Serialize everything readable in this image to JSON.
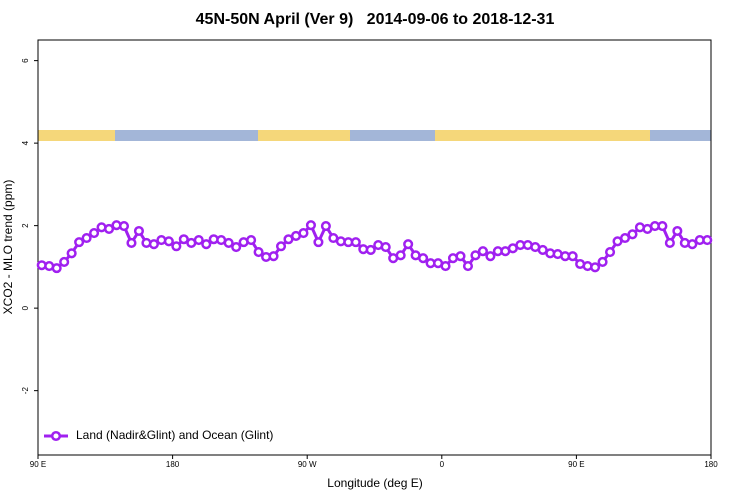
{
  "chart_data": {
    "type": "line",
    "title": "45N-50N April (Ver 9)   2014-09-06 to 2018-12-31",
    "x_label": "Longitude (deg E)",
    "y_label": "XCO2 - MLO trend (ppm)",
    "x": [
      92.5,
      97.5,
      102.5,
      107.5,
      112.5,
      117.5,
      122.5,
      127.5,
      132.5,
      137.5,
      142.5,
      147.5,
      152.5,
      157.5,
      162.5,
      167.5,
      172.5,
      177.5,
      182.5,
      187.5,
      192.5,
      197.5,
      202.5,
      207.5,
      212.5,
      217.5,
      222.5,
      227.5,
      232.5,
      237.5,
      242.5,
      247.5,
      252.5,
      257.5,
      262.5,
      267.5,
      272.5,
      277.5,
      282.5,
      287.5,
      292.5,
      297.5,
      302.5,
      307.5,
      312.5,
      317.5,
      322.5,
      327.5,
      332.5,
      337.5,
      342.5,
      347.5,
      352.5,
      357.5,
      362.5,
      367.5,
      372.5,
      377.5,
      382.5,
      387.5,
      392.5,
      397.5,
      402.5,
      407.5,
      412.5,
      417.5,
      422.5,
      427.5,
      432.5,
      437.5,
      442.5,
      447.5,
      452.5,
      457.5,
      462.5,
      467.5,
      472.5,
      477.5,
      482.5,
      487.5,
      492.5,
      497.5,
      502.5,
      507.5,
      512.5,
      517.5,
      522.5,
      527.5,
      532.5,
      537.5
    ],
    "series": [
      {
        "name": "Land (Nadir&Glint) and Ocean (Glint)",
        "color": "#a020f0",
        "values": [
          1.04,
          1.02,
          0.97,
          1.12,
          1.33,
          1.6,
          1.7,
          1.82,
          1.96,
          1.92,
          2.01,
          1.99,
          1.58,
          1.87,
          1.58,
          1.55,
          1.65,
          1.62,
          1.5,
          1.67,
          1.58,
          1.65,
          1.55,
          1.67,
          1.65,
          1.58,
          1.48,
          1.6,
          1.65,
          1.36,
          1.24,
          1.26,
          1.5,
          1.67,
          1.75,
          1.82,
          2.01,
          1.6,
          1.99,
          1.7,
          1.62,
          1.6,
          1.6,
          1.43,
          1.41,
          1.53,
          1.48,
          1.21,
          1.28,
          1.55,
          1.28,
          1.21,
          1.09,
          1.09,
          1.02,
          1.21,
          1.26,
          1.02,
          1.28,
          1.38,
          1.26,
          1.38,
          1.38,
          1.45,
          1.53,
          1.53,
          1.48,
          1.41,
          1.33,
          1.31,
          1.26,
          1.26,
          1.07,
          1.02,
          0.99,
          1.12,
          1.36,
          1.62,
          1.7,
          1.79,
          1.96,
          1.92,
          1.99,
          1.99,
          1.58,
          1.87,
          1.58,
          1.55,
          1.65,
          1.65
        ]
      }
    ],
    "xlim": [
      90,
      540
    ],
    "xticks": [
      {
        "value": 90,
        "label": "90 E"
      },
      180,
      {
        "value": 270,
        "label": "90 W"
      },
      {
        "value": 360,
        "label": "0"
      },
      {
        "value": 450,
        "label": "90 E"
      },
      {
        "value": 540,
        "label": "180"
      }
    ],
    "ylim": [
      -3.56,
      6.5
    ],
    "yticks": [
      -2,
      0,
      2,
      4,
      6
    ],
    "legend": "bottomleft"
  }
}
